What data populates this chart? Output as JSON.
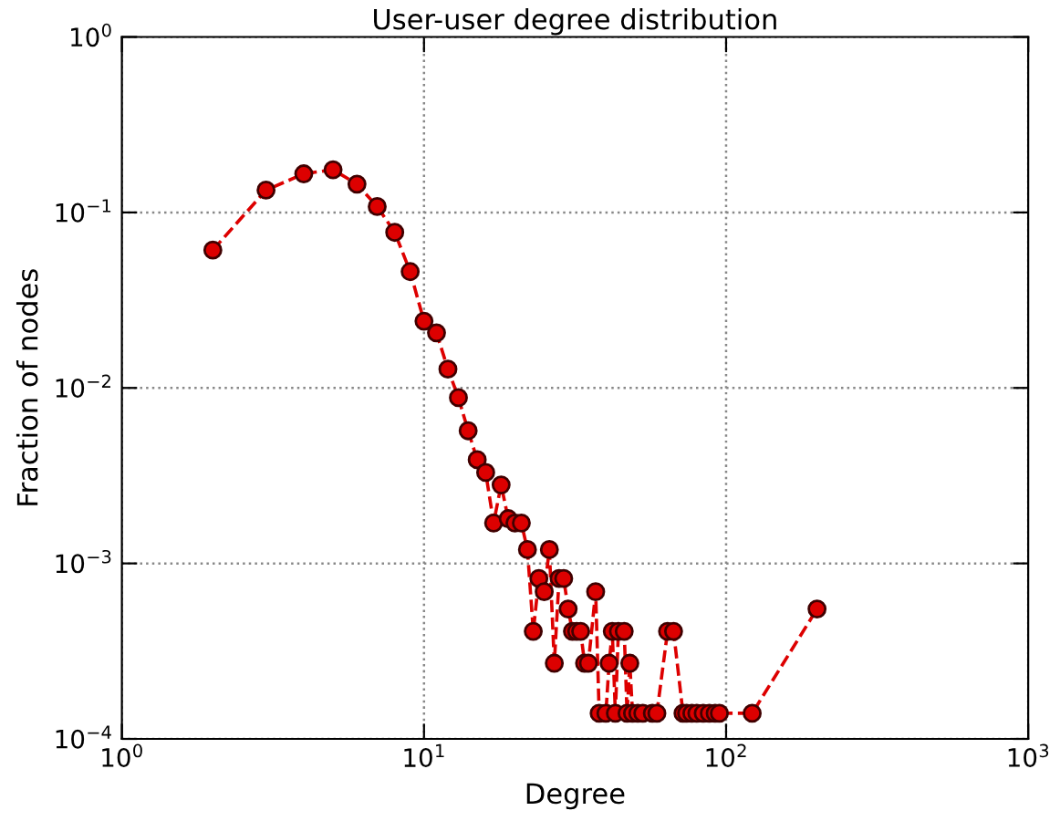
{
  "chart_data": {
    "type": "line",
    "title": "User-user degree distribution",
    "xlabel": "Degree",
    "ylabel": "Fraction of nodes",
    "log": "xy",
    "grid": true,
    "marker": "circle",
    "line_style": "dashed",
    "xlim": [
      1,
      1000
    ],
    "ylim": [
      0.0001,
      1
    ],
    "xticks": [
      {
        "value": 1,
        "label": "10$^{0}$"
      },
      {
        "value": 10,
        "label": "10$^{1}$"
      },
      {
        "value": 100,
        "label": "10$^{2}$"
      },
      {
        "value": 1000,
        "label": "10$^{3}$"
      }
    ],
    "yticks": [
      {
        "value": 0.0001,
        "label": "10$^{−4}$"
      },
      {
        "value": 0.001,
        "label": "10$^{−3}$"
      },
      {
        "value": 0.01,
        "label": "10$^{−2}$"
      },
      {
        "value": 0.1,
        "label": "10$^{−1}$"
      },
      {
        "value": 1,
        "label": "10$^{0}$"
      }
    ],
    "series": [
      {
        "color": "#dd0000",
        "x": [
          2,
          3,
          4,
          5,
          6,
          7,
          8,
          9,
          10,
          11,
          12,
          13,
          14,
          15,
          16,
          17,
          18,
          19,
          20,
          21,
          22,
          23,
          24,
          25,
          26,
          27,
          28,
          29,
          30,
          31,
          32,
          33,
          34,
          35,
          37,
          38,
          40,
          41,
          42,
          43,
          44,
          46,
          47,
          48,
          49,
          51,
          53,
          57,
          59,
          64,
          67,
          72,
          74,
          77,
          80,
          84,
          88,
          92,
          95,
          122,
          200
        ],
        "values": [
          0.061,
          0.134,
          0.166,
          0.175,
          0.145,
          0.108,
          0.077,
          0.046,
          0.024,
          0.0206,
          0.0128,
          0.0088,
          0.0057,
          0.0039,
          0.0033,
          0.0017,
          0.0028,
          0.0018,
          0.0017,
          0.0017,
          0.0012,
          0.00041,
          0.00082,
          0.00069,
          0.0012,
          0.00027,
          0.00082,
          0.00082,
          0.00055,
          0.00041,
          0.00041,
          0.00041,
          0.00027,
          0.00027,
          0.00069,
          0.00014,
          0.00014,
          0.00027,
          0.00041,
          0.00014,
          0.00041,
          0.00041,
          0.00014,
          0.00027,
          0.00014,
          0.00014,
          0.00014,
          0.00014,
          0.00014,
          0.00041,
          0.00041,
          0.00014,
          0.00014,
          0.00014,
          0.00014,
          0.00014,
          0.00014,
          0.00014,
          0.00014,
          0.00014,
          0.00055
        ]
      }
    ]
  }
}
